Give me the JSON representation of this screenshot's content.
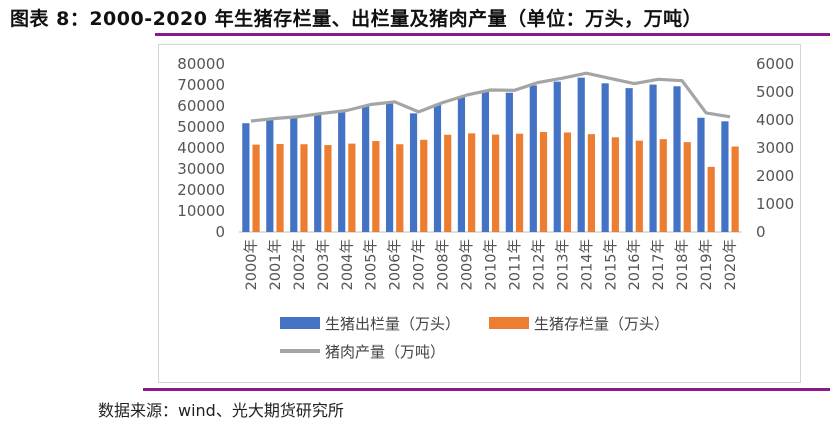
{
  "title": "图表 8：2000-2020 年生猪存栏量、出栏量及猪肉产量（单位：万头，万吨）",
  "source": "数据来源：wind、光大期货研究所",
  "colors": {
    "outflow": "#4472C4",
    "stock": "#ED7D31",
    "pork": "#A5A5A5",
    "accent": "#8a1a8a"
  },
  "chart_data": {
    "type": "bar",
    "categories": [
      "2000年",
      "2001年",
      "2002年",
      "2003年",
      "2004年",
      "2005年",
      "2006年",
      "2007年",
      "2008年",
      "2009年",
      "2010年",
      "2011年",
      "2012年",
      "2013年",
      "2014年",
      "2015年",
      "2016年",
      "2017年",
      "2018年",
      "2019年",
      "2020年"
    ],
    "series": [
      {
        "name": "生猪出栏量（万头）",
        "type": "bar",
        "axis": "left",
        "values": [
          51800,
          53300,
          54400,
          55700,
          57300,
          60400,
          61200,
          56500,
          61000,
          64500,
          66700,
          66300,
          69800,
          71600,
          73500,
          70800,
          68500,
          70200,
          69400,
          54400,
          52700
        ]
      },
      {
        "name": "生猪存栏量（万头）",
        "type": "bar",
        "axis": "left",
        "values": [
          41600,
          41900,
          41800,
          41400,
          42100,
          43300,
          41800,
          43900,
          46300,
          47000,
          46400,
          46800,
          47600,
          47400,
          46600,
          45100,
          43500,
          44200,
          42800,
          31000,
          40700
        ]
      },
      {
        "name": "猪肉产量（万吨）",
        "type": "line",
        "axis": "right",
        "values": [
          3966,
          4052,
          4123,
          4238,
          4341,
          4555,
          4650,
          4288,
          4621,
          4891,
          5071,
          5060,
          5343,
          5493,
          5671,
          5487,
          5299,
          5452,
          5404,
          4255,
          4113
        ]
      }
    ],
    "yleft": {
      "min": 0,
      "max": 80000,
      "ticks": [
        "0",
        "10000",
        "20000",
        "30000",
        "40000",
        "50000",
        "60000",
        "70000",
        "80000"
      ]
    },
    "yright": {
      "min": 0,
      "max": 6000,
      "ticks": [
        "0",
        "1000",
        "2000",
        "3000",
        "4000",
        "5000",
        "6000"
      ]
    },
    "legend_position": "bottom",
    "grid": false
  }
}
